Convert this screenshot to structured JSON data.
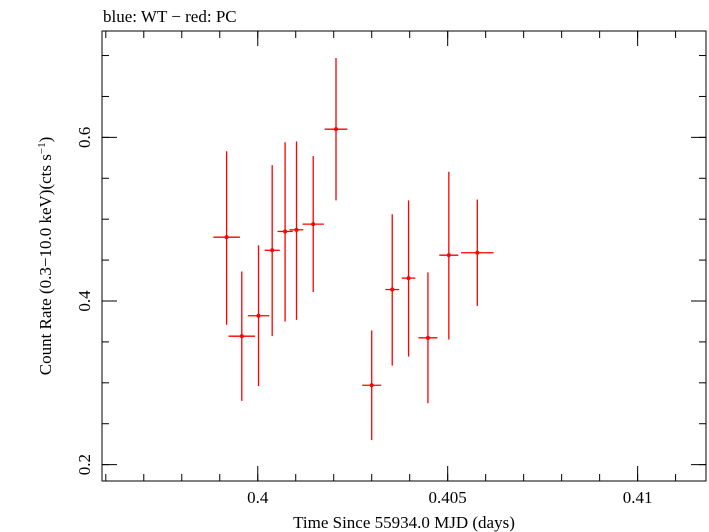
{
  "chart_data": {
    "type": "scatter",
    "title": "blue: WT − red: PC",
    "xlabel": "Time Since 55934.0 MJD (days)",
    "ylabel_parts": {
      "main": "Count Rate (0.3−10.0 keV)(cts s",
      "sup": "−1",
      "close": ")"
    },
    "xlim": [
      0.3959,
      0.4118
    ],
    "ylim": [
      0.18,
      0.73
    ],
    "x_ticks": [
      {
        "value": 0.4,
        "label": "0.4"
      },
      {
        "value": 0.405,
        "label": "0.405"
      },
      {
        "value": 0.41,
        "label": "0.41"
      }
    ],
    "x_minor_step": 0.001,
    "y_ticks": [
      {
        "value": 0.2,
        "label": "0.2"
      },
      {
        "value": 0.4,
        "label": "0.4"
      },
      {
        "value": 0.6,
        "label": "0.6"
      }
    ],
    "y_minor_step": 0.05,
    "colors": {
      "series": "#ff0000",
      "axis": "#000000",
      "background": "#ffffff"
    },
    "series": [
      {
        "name": "PC",
        "points": [
          {
            "x": 0.39918,
            "xerr": 0.00035,
            "y": 0.478,
            "yerr_lo": 0.107,
            "yerr_hi": 0.105
          },
          {
            "x": 0.39958,
            "xerr": 0.00035,
            "y": 0.357,
            "yerr_lo": 0.079,
            "yerr_hi": 0.079
          },
          {
            "x": 0.40002,
            "xerr": 0.00028,
            "y": 0.382,
            "yerr_lo": 0.086,
            "yerr_hi": 0.086
          },
          {
            "x": 0.40038,
            "xerr": 0.0002,
            "y": 0.462,
            "yerr_lo": 0.105,
            "yerr_hi": 0.104
          },
          {
            "x": 0.40072,
            "xerr": 0.0002,
            "y": 0.485,
            "yerr_lo": 0.11,
            "yerr_hi": 0.109
          },
          {
            "x": 0.40102,
            "xerr": 0.00018,
            "y": 0.487,
            "yerr_lo": 0.11,
            "yerr_hi": 0.108
          },
          {
            "x": 0.40146,
            "xerr": 0.00028,
            "y": 0.494,
            "yerr_lo": 0.083,
            "yerr_hi": 0.083
          },
          {
            "x": 0.40206,
            "xerr": 0.0003,
            "y": 0.61,
            "yerr_lo": 0.087,
            "yerr_hi": 0.087
          },
          {
            "x": 0.403,
            "xerr": 0.00025,
            "y": 0.297,
            "yerr_lo": 0.067,
            "yerr_hi": 0.067
          },
          {
            "x": 0.40354,
            "xerr": 0.00018,
            "y": 0.414,
            "yerr_lo": 0.093,
            "yerr_hi": 0.092
          },
          {
            "x": 0.40397,
            "xerr": 0.00018,
            "y": 0.428,
            "yerr_lo": 0.096,
            "yerr_hi": 0.095
          },
          {
            "x": 0.40448,
            "xerr": 0.00025,
            "y": 0.355,
            "yerr_lo": 0.08,
            "yerr_hi": 0.08
          },
          {
            "x": 0.40503,
            "xerr": 0.00025,
            "y": 0.456,
            "yerr_lo": 0.103,
            "yerr_hi": 0.102
          },
          {
            "x": 0.40578,
            "xerr": 0.00043,
            "y": 0.459,
            "yerr_lo": 0.065,
            "yerr_hi": 0.065
          }
        ]
      }
    ]
  }
}
